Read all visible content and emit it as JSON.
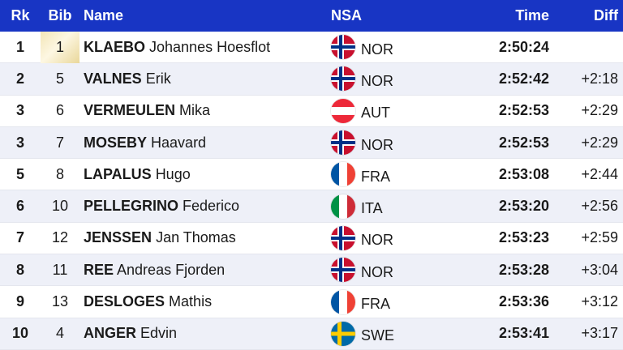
{
  "header": {
    "rk": "Rk",
    "bib": "Bib",
    "name": "Name",
    "nsa": "NSA",
    "time": "Time",
    "diff": "Diff"
  },
  "colors": {
    "header_bg": "#1835c4",
    "alt_row_bg": "#eef0f8",
    "gold_bib": "#efdfa6"
  },
  "rows": [
    {
      "rk": "1",
      "bib": "1",
      "last": "KLAEBO",
      "first": "Johannes Hoesflot",
      "nsa": "NOR",
      "flag": "norway-flag-icon",
      "time": "2:50:24",
      "diff": ""
    },
    {
      "rk": "2",
      "bib": "5",
      "last": "VALNES",
      "first": "Erik",
      "nsa": "NOR",
      "flag": "norway-flag-icon",
      "time": "2:52:42",
      "diff": "+2:18"
    },
    {
      "rk": "3",
      "bib": "6",
      "last": "VERMEULEN",
      "first": "Mika",
      "nsa": "AUT",
      "flag": "austria-flag-icon",
      "time": "2:52:53",
      "diff": "+2:29"
    },
    {
      "rk": "3",
      "bib": "7",
      "last": "MOSEBY",
      "first": "Haavard",
      "nsa": "NOR",
      "flag": "norway-flag-icon",
      "time": "2:52:53",
      "diff": "+2:29"
    },
    {
      "rk": "5",
      "bib": "8",
      "last": "LAPALUS",
      "first": "Hugo",
      "nsa": "FRA",
      "flag": "france-flag-icon",
      "time": "2:53:08",
      "diff": "+2:44"
    },
    {
      "rk": "6",
      "bib": "10",
      "last": "PELLEGRINO",
      "first": "Federico",
      "nsa": "ITA",
      "flag": "italy-flag-icon",
      "time": "2:53:20",
      "diff": "+2:56"
    },
    {
      "rk": "7",
      "bib": "12",
      "last": "JENSSEN",
      "first": "Jan Thomas",
      "nsa": "NOR",
      "flag": "norway-flag-icon",
      "time": "2:53:23",
      "diff": "+2:59"
    },
    {
      "rk": "8",
      "bib": "11",
      "last": "REE",
      "first": "Andreas Fjorden",
      "nsa": "NOR",
      "flag": "norway-flag-icon",
      "time": "2:53:28",
      "diff": "+3:04"
    },
    {
      "rk": "9",
      "bib": "13",
      "last": "DESLOGES",
      "first": "Mathis",
      "nsa": "FRA",
      "flag": "france-flag-icon",
      "time": "2:53:36",
      "diff": "+3:12"
    },
    {
      "rk": "10",
      "bib": "4",
      "last": "ANGER",
      "first": "Edvin",
      "nsa": "SWE",
      "flag": "sweden-flag-icon",
      "time": "2:53:41",
      "diff": "+3:17"
    }
  ]
}
